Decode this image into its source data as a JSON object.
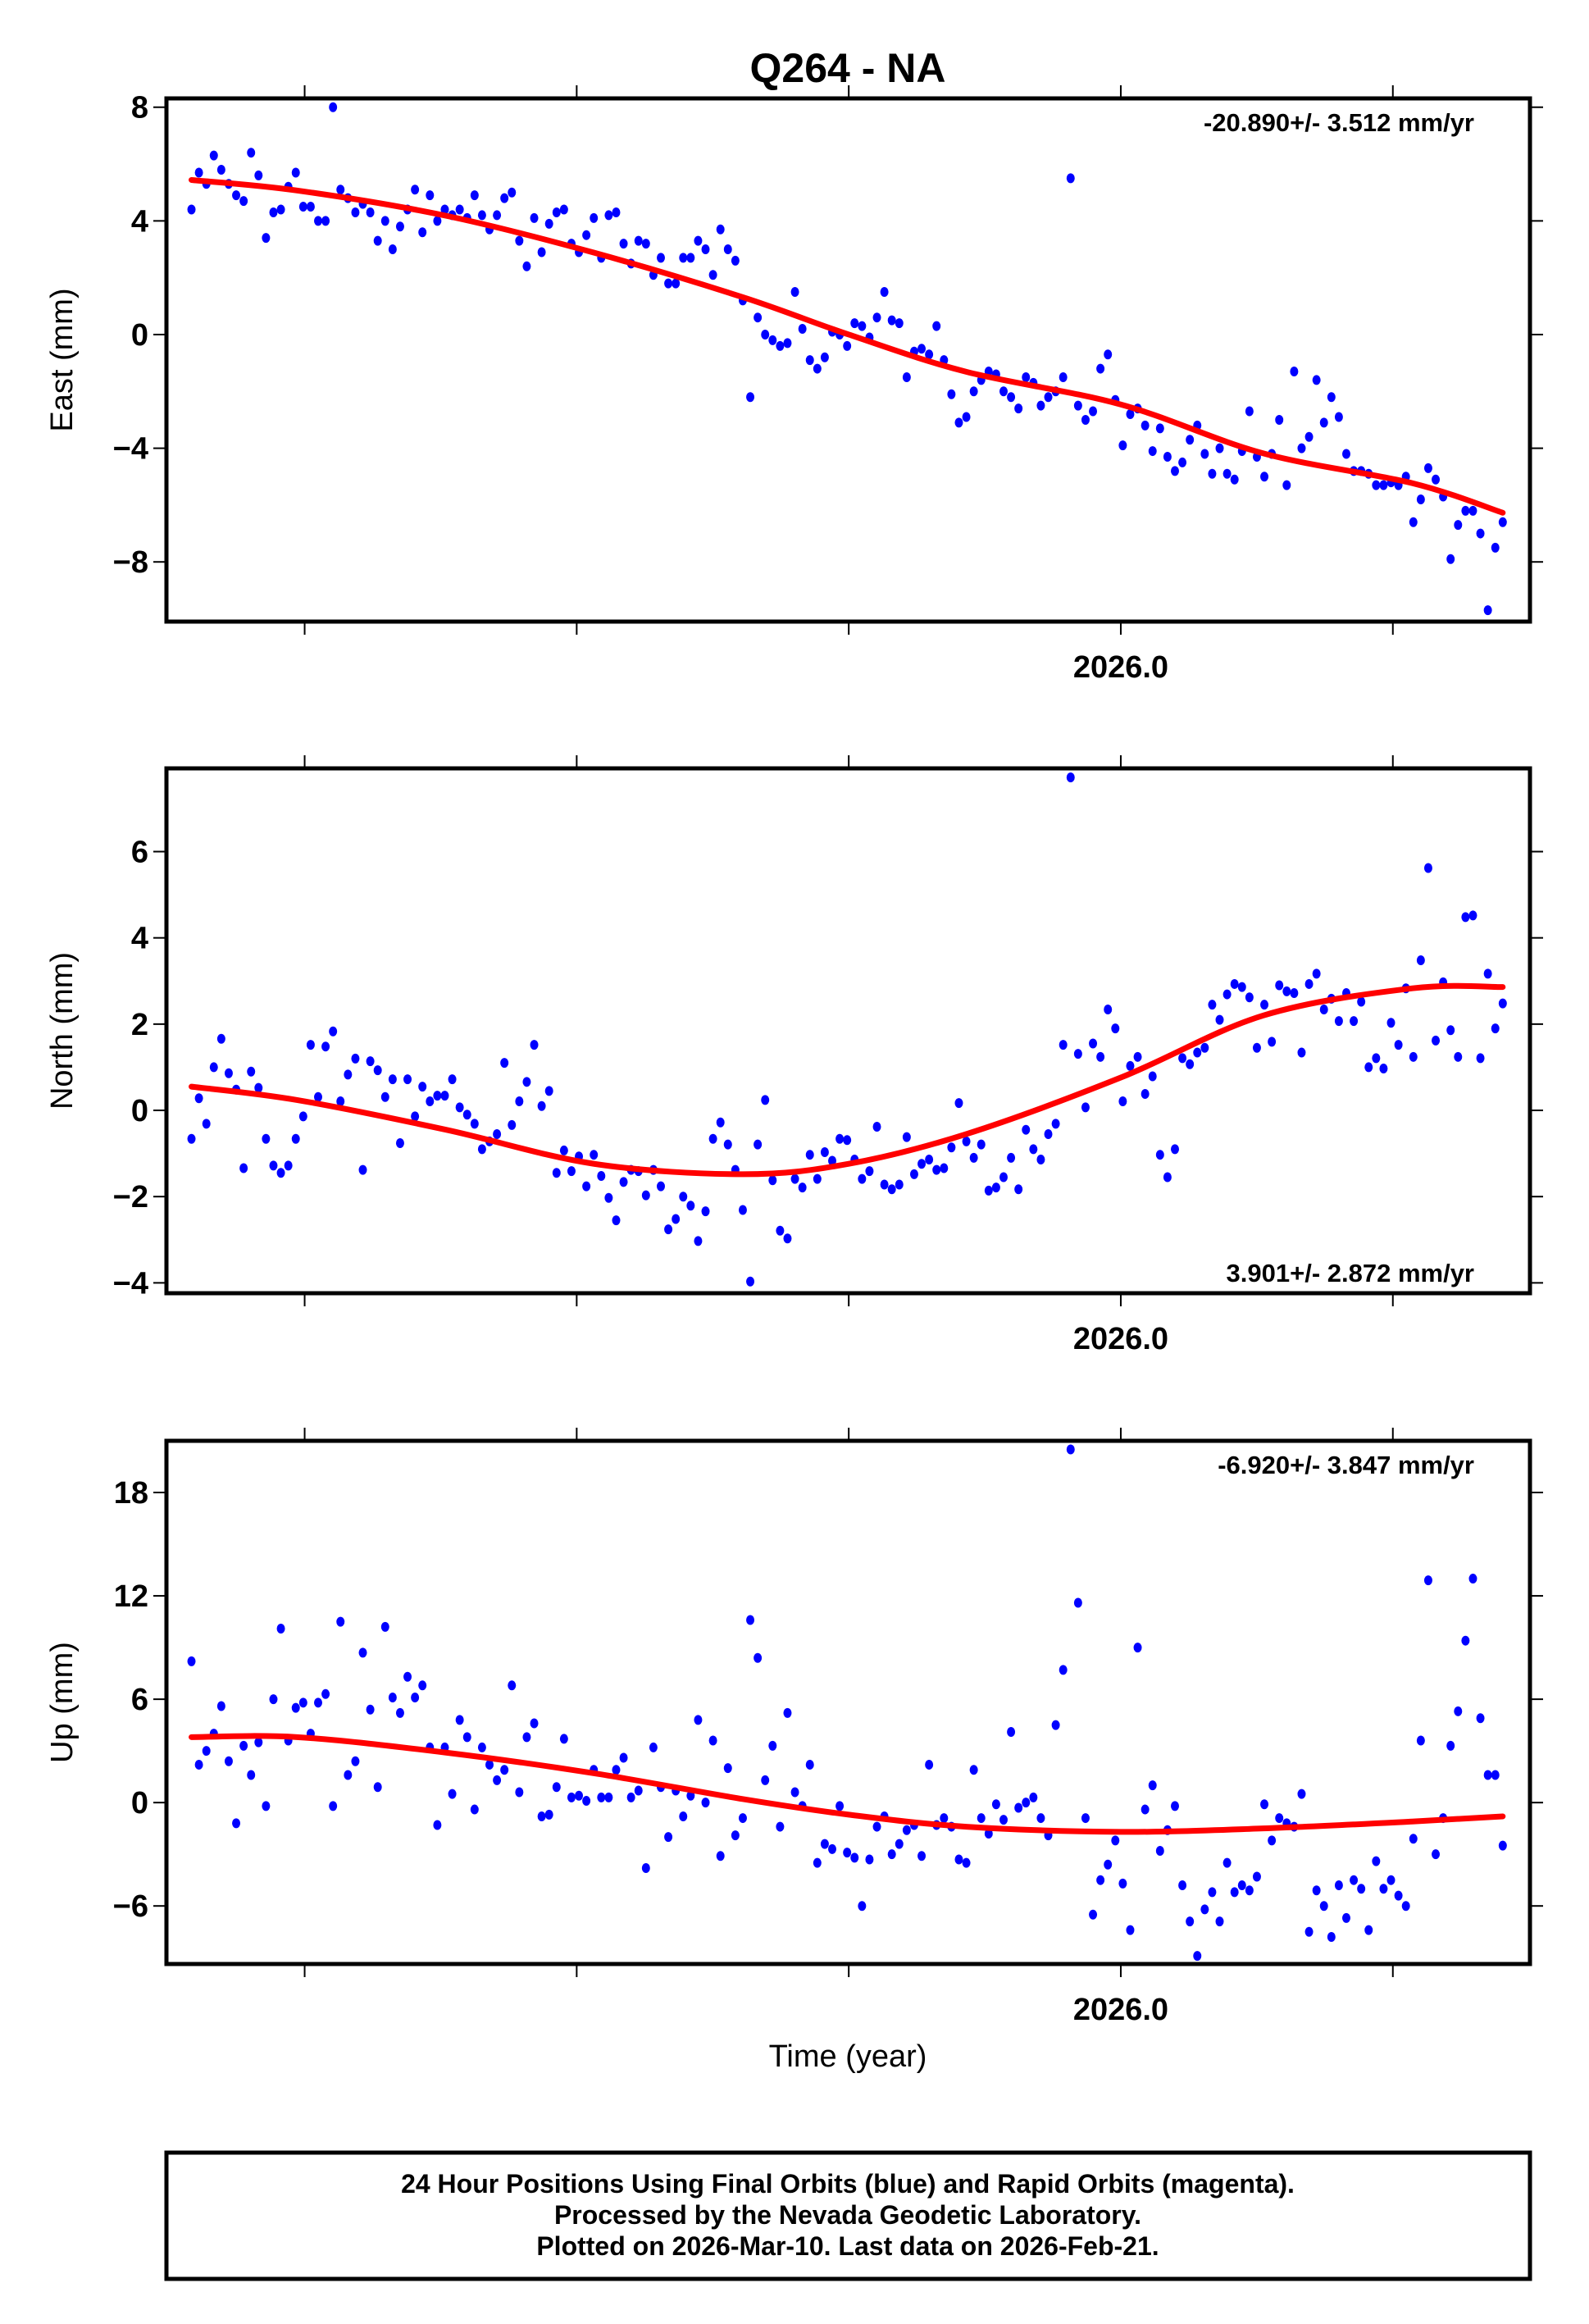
{
  "title": "Q264 - NA",
  "xlabel": "Time (year)",
  "footer": [
    "24 Hour Positions Using Final Orbits (blue) and Rapid Orbits (magenta).",
    "Processed by the Nevada Geodetic Laboratory.",
    "Plotted on 2026-Mar-10. Last data on 2026-Feb-21."
  ],
  "chart_data": [
    {
      "type": "scatter",
      "ylabel": "East (mm)",
      "rate": "-20.890+/- 3.512 mm/yr",
      "rate_position": "top-right",
      "xlim": [
        2025.123,
        2026.376
      ],
      "ylim": [
        -10.1,
        8.31
      ],
      "yticks": [
        8,
        4,
        0,
        -4,
        -8
      ],
      "ytick_labels": [
        "8",
        "4",
        "0",
        "−4",
        "−8"
      ],
      "xticks": [
        2025.25,
        2025.5,
        2025.75,
        2026.0,
        2026.25
      ],
      "xtick_labels": [
        "",
        "",
        "",
        "2026.0",
        ""
      ],
      "x_start": 2025.146,
      "x_end": 2026.351,
      "point_color": "#0000ff",
      "fit_color": "#ff0000",
      "values": [
        4.4,
        5.7,
        5.3,
        6.3,
        5.8,
        5.3,
        4.9,
        4.7,
        6.4,
        5.6,
        3.4,
        4.3,
        4.4,
        5.2,
        5.7,
        4.5,
        4.5,
        4.0,
        4.0,
        8.0,
        5.1,
        4.8,
        4.3,
        4.6,
        4.3,
        3.3,
        4.0,
        3.0,
        3.8,
        4.4,
        5.1,
        3.6,
        4.9,
        4.0,
        4.4,
        4.2,
        4.4,
        4.1,
        4.9,
        4.2,
        3.7,
        4.2,
        4.8,
        5.0,
        3.3,
        2.4,
        4.1,
        2.9,
        3.9,
        4.3,
        4.4,
        3.2,
        2.9,
        3.5,
        4.1,
        2.7,
        4.2,
        4.3,
        3.2,
        2.5,
        3.3,
        3.2,
        2.1,
        2.7,
        1.8,
        1.8,
        2.7,
        2.7,
        3.3,
        3.0,
        2.1,
        3.7,
        3.0,
        2.6,
        1.2,
        -2.2,
        0.6,
        0,
        -0.2,
        -0.4,
        -0.3,
        1.5,
        0.2,
        -0.9,
        -1.2,
        -0.8,
        0.1,
        0,
        -0.4,
        0.4,
        0.3,
        -0.1,
        0.6,
        1.5,
        0.5,
        0.4,
        -1.5,
        -0.6,
        -0.5,
        -0.7,
        0.3,
        -0.9,
        -2.1,
        -3.1,
        -2.9,
        -2.0,
        -1.6,
        -1.3,
        -1.4,
        -2.0,
        -2.2,
        -2.6,
        -1.5,
        -1.7,
        -2.5,
        -2.2,
        -2.0,
        -1.5,
        5.5,
        -2.5,
        -3.0,
        -2.7,
        -1.2,
        -0.7,
        -2.3,
        -3.9,
        -2.8,
        -2.6,
        -3.2,
        -4.1,
        -3.3,
        -4.3,
        -4.8,
        -4.5,
        -3.7,
        -3.2,
        -4.2,
        -4.9,
        -4.0,
        -4.9,
        -5.1,
        -4.1,
        -2.7,
        -4.3,
        -5.0,
        -4.2,
        -3.0,
        -5.3,
        -1.3,
        -4.0,
        -3.6,
        -1.6,
        -3.1,
        -2.2,
        -2.9,
        -4.2,
        -4.8,
        -4.8,
        -4.9,
        -5.3,
        -5.3,
        -5.2,
        -5.3,
        -5.0,
        -6.6,
        -5.8,
        -4.7,
        -5.1,
        -5.7,
        -7.9,
        -6.7,
        -6.2,
        -6.2,
        -7.0,
        -9.7,
        -7.5,
        -6.6
      ],
      "fit": {
        "x": [
          2025.146,
          2025.243,
          2025.38,
          2025.516,
          2025.653,
          2025.75,
          2025.858,
          2026.0,
          2026.131,
          2026.268,
          2026.351
        ],
        "y": [
          5.44,
          5.07,
          4.18,
          2.88,
          1.31,
          0,
          -1.31,
          -2.46,
          -4.18,
          -5.23,
          -6.27
        ]
      }
    },
    {
      "type": "scatter",
      "ylabel": "North (mm)",
      "rate": "3.901+/- 2.872 mm/yr",
      "rate_position": "bottom-right",
      "xlim": [
        2025.123,
        2026.376
      ],
      "ylim": [
        -4.24,
        7.93
      ],
      "yticks": [
        6,
        4,
        2,
        0,
        -2,
        -4
      ],
      "ytick_labels": [
        "6",
        "4",
        "2",
        "0",
        "−2",
        "−4"
      ],
      "xticks": [
        2025.25,
        2025.5,
        2025.75,
        2026.0,
        2026.25
      ],
      "xtick_labels": [
        "",
        "",
        "",
        "2026.0",
        ""
      ],
      "x_start": 2025.146,
      "x_end": 2026.351,
      "point_color": "#0000ff",
      "fit_color": "#ff0000",
      "values": [
        -0.66,
        0.28,
        -0.31,
        1.0,
        1.66,
        0.86,
        0.48,
        -1.34,
        0.9,
        0.52,
        -0.66,
        -1.28,
        -1.45,
        -1.28,
        -0.66,
        -0.14,
        1.52,
        0.31,
        1.48,
        1.83,
        0.21,
        0.83,
        1.2,
        -1.38,
        1.14,
        0.93,
        0.31,
        0.72,
        -0.76,
        0.72,
        -0.14,
        0.55,
        0.21,
        0.34,
        0.34,
        0.72,
        0.07,
        -0.1,
        -0.31,
        -0.9,
        -0.72,
        -0.55,
        1.1,
        -0.34,
        0.21,
        0.66,
        1.52,
        0.1,
        0.45,
        -1.45,
        -0.93,
        -1.41,
        -1.07,
        -1.76,
        -1.03,
        -1.52,
        -2.03,
        -2.55,
        -1.66,
        -1.38,
        -1.41,
        -1.97,
        -1.38,
        -1.76,
        -2.76,
        -2.52,
        -2.0,
        -2.21,
        -3.03,
        -2.34,
        -0.66,
        -0.28,
        -0.79,
        -1.38,
        -2.31,
        -3.97,
        -0.79,
        0.24,
        -1.62,
        -2.79,
        -2.97,
        -1.59,
        -1.79,
        -1.03,
        -1.59,
        -0.97,
        -1.17,
        -0.66,
        -0.69,
        -1.14,
        -1.59,
        -1.41,
        -0.38,
        -1.72,
        -1.83,
        -1.72,
        -0.62,
        -1.48,
        -1.24,
        -1.14,
        -1.38,
        -1.34,
        -0.86,
        0.17,
        -0.72,
        -1.1,
        -0.79,
        -1.86,
        -1.79,
        -1.55,
        -1.1,
        -1.83,
        -0.45,
        -0.9,
        -1.14,
        -0.55,
        -0.31,
        1.52,
        7.72,
        1.31,
        0.07,
        1.55,
        1.24,
        2.34,
        1.9,
        0.21,
        1.03,
        1.24,
        0.38,
        0.79,
        -1.03,
        -1.55,
        -0.9,
        1.21,
        1.07,
        1.34,
        1.45,
        2.45,
        2.1,
        2.69,
        2.93,
        2.86,
        2.62,
        1.45,
        2.45,
        1.59,
        2.9,
        2.76,
        2.72,
        1.34,
        2.93,
        3.17,
        2.34,
        2.59,
        2.07,
        2.72,
        2.07,
        2.52,
        1.0,
        1.21,
        0.97,
        2.03,
        1.52,
        2.83,
        1.24,
        3.48,
        5.62,
        1.62,
        2.97,
        1.86,
        1.24,
        4.48,
        4.52,
        1.21,
        3.17,
        1.9,
        2.48
      ],
      "fit": {
        "x": [
          2025.146,
          2025.243,
          2025.38,
          2025.516,
          2025.653,
          2025.75,
          2025.858,
          2026.0,
          2026.131,
          2026.268,
          2026.351
        ],
        "y": [
          0.55,
          0.24,
          -0.45,
          -1.24,
          -1.48,
          -1.24,
          -0.55,
          0.76,
          2.2,
          2.83,
          2.86
        ]
      }
    },
    {
      "type": "scatter",
      "ylabel": "Up (mm)",
      "rate": "-6.920+/- 3.847 mm/yr",
      "rate_position": "top-right",
      "xlim": [
        2025.123,
        2026.376
      ],
      "ylim": [
        -9.37,
        21.0
      ],
      "yticks": [
        18,
        12,
        6,
        0,
        -6
      ],
      "ytick_labels": [
        "18",
        "12",
        "6",
        "0",
        "−6"
      ],
      "xticks": [
        2025.25,
        2025.5,
        2025.75,
        2026.0,
        2026.25
      ],
      "xtick_labels": [
        "",
        "",
        "",
        "2026.0",
        ""
      ],
      "x_start": 2025.146,
      "x_end": 2026.351,
      "point_color": "#0000ff",
      "fit_color": "#ff0000",
      "values": [
        8.2,
        2.2,
        3.0,
        4.0,
        5.6,
        2.4,
        -1.2,
        3.3,
        1.6,
        3.5,
        -0.2,
        6.0,
        10.1,
        3.6,
        5.5,
        5.8,
        4.0,
        5.8,
        6.3,
        -0.2,
        10.5,
        1.6,
        2.4,
        8.7,
        5.4,
        0.9,
        10.2,
        6.1,
        5.2,
        7.3,
        6.1,
        6.8,
        3.2,
        -1.3,
        3.2,
        0.5,
        4.8,
        3.8,
        -0.4,
        3.2,
        2.2,
        1.3,
        1.9,
        6.8,
        0.6,
        3.8,
        4.6,
        -0.8,
        -0.7,
        0.9,
        3.7,
        0.3,
        0.4,
        0.1,
        1.9,
        0.3,
        0.3,
        1.9,
        2.6,
        0.3,
        0.7,
        -3.8,
        3.2,
        0.9,
        -2.0,
        0.7,
        -0.8,
        0.4,
        4.8,
        0.0,
        3.6,
        -3.1,
        2.0,
        -1.9,
        -0.9,
        10.6,
        8.4,
        1.3,
        3.3,
        -1.4,
        5.2,
        0.6,
        -0.2,
        2.2,
        -3.5,
        -2.4,
        -2.7,
        -0.2,
        -2.9,
        -3.2,
        -6.0,
        -3.3,
        -1.4,
        -0.8,
        -3.0,
        -2.4,
        -1.6,
        -1.3,
        -3.1,
        2.2,
        -1.3,
        -0.9,
        -1.4,
        -3.3,
        -3.5,
        1.9,
        -0.9,
        -1.8,
        -0.1,
        -1.0,
        4.1,
        -0.3,
        0.0,
        0.3,
        -0.9,
        -1.9,
        4.5,
        7.7,
        20.5,
        11.6,
        -0.9,
        -6.5,
        -4.5,
        -3.6,
        -2.2,
        -4.7,
        -7.4,
        9.0,
        -0.4,
        1.0,
        -2.8,
        -1.6,
        -0.2,
        -4.8,
        -6.9,
        -8.9,
        -6.2,
        -5.2,
        -6.9,
        -3.5,
        -5.2,
        -4.8,
        -5.1,
        -4.3,
        -0.1,
        -2.2,
        -0.9,
        -1.2,
        -1.4,
        0.5,
        -7.5,
        -5.1,
        -6.0,
        -7.8,
        -4.8,
        -6.7,
        -4.5,
        -5.0,
        -7.4,
        -3.4,
        -5.0,
        -4.5,
        -5.4,
        -6.0,
        -2.1,
        3.6,
        12.9,
        -3.0,
        -0.9,
        3.3,
        5.3,
        9.4,
        13.0,
        4.9,
        1.6,
        1.6,
        -2.5
      ],
      "fit": {
        "x": [
          2025.146,
          2025.243,
          2025.38,
          2025.516,
          2025.653,
          2025.75,
          2025.858,
          2026.0,
          2026.131,
          2026.268,
          2026.351
        ],
        "y": [
          3.8,
          3.8,
          2.9,
          1.7,
          0.2,
          -0.7,
          -1.4,
          -1.7,
          -1.5,
          -1.1,
          -0.8
        ]
      }
    }
  ]
}
